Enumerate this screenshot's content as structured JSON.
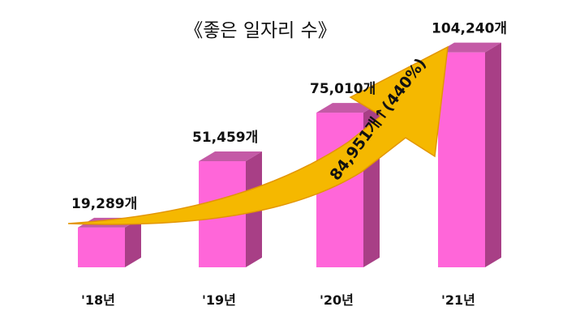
{
  "chart_data": {
    "type": "bar",
    "title": "《좋은 일자리 수》",
    "categories": [
      "'18년",
      "'19년",
      "'20년",
      "'21년"
    ],
    "values": [
      19289,
      51459,
      75010,
      104240
    ],
    "value_labels": [
      "19,289개",
      "51,459개",
      "75,010개",
      "104,240개"
    ],
    "ylim": [
      0,
      110000
    ],
    "grid": false,
    "annotation": "84,951개↑(440%)",
    "colors": {
      "bar_front": "#ff66d9",
      "bar_top": "#c45aa6",
      "bar_side": "#a83f86",
      "arrow": "#f5b800",
      "arrow_edge": "#e39600"
    }
  }
}
